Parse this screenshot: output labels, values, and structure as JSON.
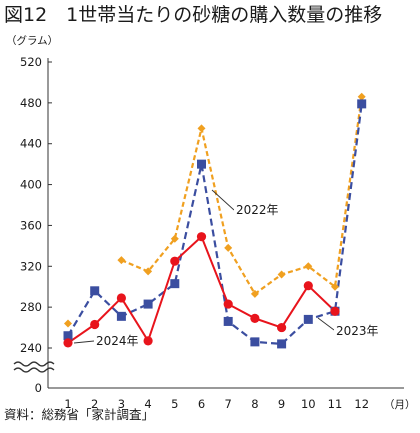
{
  "title": "図12　1世帯当たりの砂糖の購入数量の推移",
  "source": "資料：総務省「家計調査」",
  "chart_data": {
    "type": "line",
    "ylabel": "（グラム）",
    "xlabel": "（月）",
    "categories": [
      "1",
      "2",
      "3",
      "4",
      "5",
      "6",
      "7",
      "8",
      "9",
      "10",
      "11",
      "12"
    ],
    "ylim": [
      240,
      520
    ],
    "yticks": [
      "0",
      "240",
      "280",
      "320",
      "360",
      "400",
      "440",
      "480",
      "520"
    ],
    "axis_break": true,
    "grid": false,
    "series": [
      {
        "name": "2022年",
        "color": "#f0a020",
        "line_style": "dashed",
        "marker": "diamond",
        "values": [
          264,
          null,
          326,
          315,
          347,
          455,
          338,
          293,
          312,
          320,
          300,
          486
        ]
      },
      {
        "name": "2023年",
        "color": "#3b4ea0",
        "line_style": "dashed",
        "marker": "square",
        "values": [
          252,
          296,
          271,
          283,
          303,
          420,
          266,
          246,
          244,
          268,
          276,
          479
        ]
      },
      {
        "name": "2024年",
        "color": "#e8141c",
        "line_style": "solid",
        "marker": "circle",
        "values": [
          245,
          263,
          289,
          247,
          325,
          349,
          283,
          269,
          260,
          301,
          276,
          null
        ]
      }
    ]
  }
}
